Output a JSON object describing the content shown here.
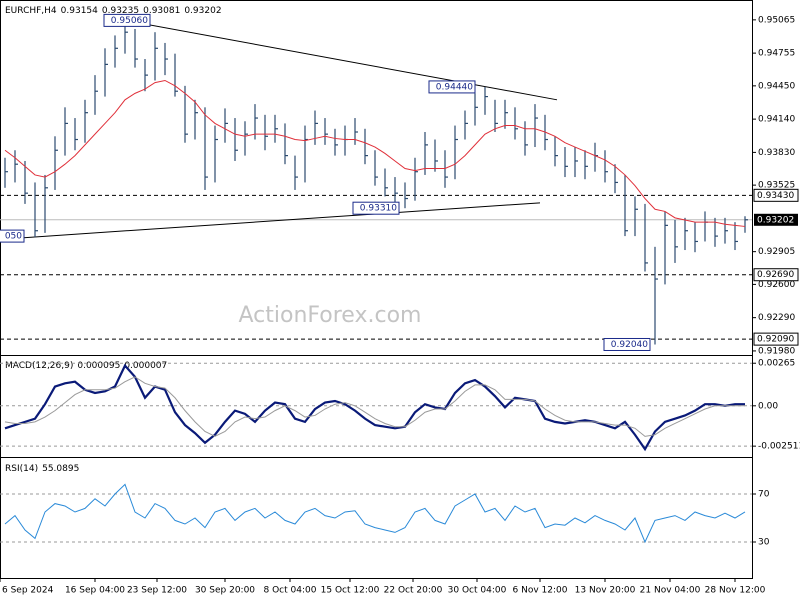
{
  "chart_data": [
    {
      "type": "ohlc",
      "title": "EURCHF,H4",
      "header_values": [
        0.93154,
        0.93235,
        0.93081,
        0.93202
      ],
      "watermark": "ActionForex.com",
      "xlim": [
        -0.5,
        74.7
      ],
      "xticks": [
        {
          "value": -0.5,
          "label": "6 Sep 2024"
        },
        {
          "value": 9,
          "label": "16 Sep 04:00"
        },
        {
          "value": 15.2,
          "label": "23 Sep 12:00"
        },
        {
          "value": 22,
          "label": "30 Sep 20:00"
        },
        {
          "value": 28.5,
          "label": "8 Oct 04:00"
        },
        {
          "value": 34.5,
          "label": "15 Oct 12:00"
        },
        {
          "value": 40.8,
          "label": "22 Oct 20:00"
        },
        {
          "value": 47.2,
          "label": "30 Oct 04:00"
        },
        {
          "value": 53.5,
          "label": "6 Nov 12:00"
        },
        {
          "value": 60,
          "label": "13 Nov 20:00"
        },
        {
          "value": 66.5,
          "label": "21 Nov 04:00"
        },
        {
          "value": 73,
          "label": "28 Nov 12:00"
        }
      ],
      "ylim": [
        0.9197,
        0.9525
      ],
      "yticks": [
        0.95065,
        0.94755,
        {
          "value": 0.9445,
          "label": "0.94450"
        },
        {
          "value": 0.9414,
          "label": "0.94140"
        },
        {
          "value": 0.9383,
          "label": "0.93830"
        },
        0.93525,
        0.92905,
        {
          "value": 0.926,
          "label": "0.92600"
        },
        {
          "value": 0.9229,
          "label": "0.92290"
        },
        {
          "value": 0.9198,
          "label": "0.91980"
        }
      ],
      "bar_color": "#2b4a6f",
      "ma_color": "#e0303a",
      "close": [
        0.9365,
        0.9372,
        0.9345,
        0.931,
        0.935,
        0.9385,
        0.941,
        0.9395,
        0.942,
        0.944,
        0.9465,
        0.948,
        0.9495,
        0.947,
        0.9455,
        0.948,
        0.947,
        0.944,
        0.94,
        0.942,
        0.936,
        0.9395,
        0.941,
        0.9385,
        0.94,
        0.9415,
        0.9398,
        0.9405,
        0.938,
        0.936,
        0.9395,
        0.941,
        0.94,
        0.939,
        0.9395,
        0.9402,
        0.938,
        0.936,
        0.935,
        0.9345,
        0.934,
        0.9365,
        0.939,
        0.9375,
        0.936,
        0.9395,
        0.941,
        0.9425,
        0.9435,
        0.941,
        0.942,
        0.9405,
        0.939,
        0.9415,
        0.9395,
        0.938,
        0.937,
        0.9375,
        0.937,
        0.938,
        0.9365,
        0.9355,
        0.931,
        0.933,
        0.928,
        0.9265,
        0.9315,
        0.9295,
        0.931,
        0.93,
        0.9318,
        0.9305,
        0.931,
        0.93,
        0.93202
      ],
      "high": [
        0.9378,
        0.9385,
        0.9375,
        0.9355,
        0.9362,
        0.9398,
        0.9425,
        0.9415,
        0.9432,
        0.9455,
        0.948,
        0.9492,
        0.9506,
        0.9498,
        0.947,
        0.9495,
        0.9485,
        0.9475,
        0.9445,
        0.9432,
        0.9425,
        0.9408,
        0.9424,
        0.9415,
        0.9412,
        0.9428,
        0.9418,
        0.9418,
        0.941,
        0.938,
        0.9408,
        0.9422,
        0.9415,
        0.9405,
        0.9408,
        0.9415,
        0.9405,
        0.9385,
        0.9368,
        0.936,
        0.9355,
        0.9378,
        0.9402,
        0.9395,
        0.9385,
        0.9408,
        0.9422,
        0.9438,
        0.9444,
        0.9432,
        0.9432,
        0.9425,
        0.9412,
        0.9428,
        0.9418,
        0.9398,
        0.9388,
        0.9388,
        0.9385,
        0.9392,
        0.9385,
        0.9372,
        0.9362,
        0.9342,
        0.9335,
        0.9295,
        0.9328,
        0.932,
        0.9322,
        0.9318,
        0.9328,
        0.9322,
        0.9322,
        0.9318,
        0.93235
      ],
      "low": [
        0.935,
        0.9355,
        0.9335,
        0.9304,
        0.9308,
        0.9348,
        0.938,
        0.9385,
        0.9392,
        0.9418,
        0.9435,
        0.9462,
        0.9475,
        0.9462,
        0.944,
        0.945,
        0.9455,
        0.9435,
        0.9392,
        0.9395,
        0.9348,
        0.9355,
        0.9392,
        0.9375,
        0.938,
        0.9395,
        0.9385,
        0.9392,
        0.9372,
        0.9348,
        0.9355,
        0.939,
        0.939,
        0.938,
        0.938,
        0.939,
        0.9372,
        0.9352,
        0.9342,
        0.9335,
        0.9331,
        0.9338,
        0.9362,
        0.9365,
        0.935,
        0.9358,
        0.9395,
        0.9408,
        0.9418,
        0.9402,
        0.9405,
        0.9395,
        0.938,
        0.9388,
        0.9385,
        0.937,
        0.936,
        0.936,
        0.9358,
        0.9365,
        0.9355,
        0.9345,
        0.9305,
        0.9305,
        0.9272,
        0.9204,
        0.926,
        0.928,
        0.9292,
        0.929,
        0.93,
        0.9295,
        0.9298,
        0.9292,
        0.93081
      ],
      "ma": [
        0.9385,
        0.9378,
        0.937,
        0.9362,
        0.936,
        0.9365,
        0.9372,
        0.938,
        0.939,
        0.94,
        0.941,
        0.942,
        0.9432,
        0.9438,
        0.9442,
        0.9448,
        0.945,
        0.9445,
        0.9438,
        0.943,
        0.9418,
        0.941,
        0.9405,
        0.94,
        0.9398,
        0.94,
        0.94,
        0.94,
        0.9398,
        0.9395,
        0.9394,
        0.9396,
        0.9398,
        0.9396,
        0.9395,
        0.9395,
        0.9392,
        0.9388,
        0.9382,
        0.9375,
        0.9368,
        0.9366,
        0.9368,
        0.9368,
        0.9368,
        0.9372,
        0.938,
        0.939,
        0.94,
        0.9405,
        0.9408,
        0.9408,
        0.9405,
        0.9405,
        0.9402,
        0.9398,
        0.9392,
        0.9388,
        0.9384,
        0.938,
        0.9376,
        0.937,
        0.9362,
        0.9352,
        0.934,
        0.933,
        0.9328,
        0.9322,
        0.932,
        0.9318,
        0.9318,
        0.9318,
        0.9316,
        0.9315,
        0.9314
      ],
      "trendlines": [
        {
          "x": [
            12,
            55.2
          ],
          "y": [
            0.9506,
            0.9432
          ]
        },
        {
          "x": [
            -0.5,
            53.5
          ],
          "y": [
            0.9302,
            0.9336
          ]
        }
      ],
      "levels": [
        {
          "value": 0.9343,
          "label": "0.93430"
        },
        {
          "value": 0.9269,
          "label": "0.92690"
        },
        {
          "value": 0.9209,
          "label": "0.92090"
        }
      ],
      "current": {
        "value": 0.93202,
        "label": "0.93202"
      },
      "annotations": [
        {
          "value": 0.9506,
          "label": "0.95060"
        },
        {
          "value": 0.9444,
          "label": "0.94440"
        },
        {
          "value": 0.9331,
          "label": "0.93310"
        },
        {
          "value": 0.9204,
          "label": "0.92040"
        },
        {
          "value": 0.9305,
          "label": "050"
        }
      ]
    },
    {
      "type": "line",
      "title": "MACD(12,26,9)",
      "header_values": [
        9.5e-05,
        7e-06
      ],
      "ylim": [
        -0.003,
        0.0031
      ],
      "yticks": [
        0.00265,
        {
          "value": 0,
          "label": "0.00"
        },
        -0.002511
      ],
      "series": [
        {
          "color": "#0a1a78",
          "width": 2.2,
          "values": [
            -0.0014,
            -0.0012,
            -0.001,
            -0.0008,
            0.0001,
            0.0012,
            0.0014,
            0.0015,
            0.001,
            0.0008,
            0.0009,
            0.0012,
            0.0025,
            0.0018,
            0.0005,
            0.0012,
            0.001,
            -0.0004,
            -0.0012,
            -0.0017,
            -0.0023,
            -0.0018,
            -0.001,
            -0.0003,
            -0.0005,
            -0.001,
            -0.0003,
            0.0002,
            0.0001,
            -0.0008,
            -0.001,
            -0.0002,
            0.0002,
            0.0003,
            0.0001,
            -0.0003,
            -0.0008,
            -0.0012,
            -0.0013,
            -0.0014,
            -0.0013,
            -0.0004,
            0.0001,
            -0.0001,
            -0.0002,
            0.0008,
            0.0014,
            0.0016,
            0.0012,
            0.0006,
            -0.0001,
            0.0005,
            0.0004,
            0.0003,
            -0.0008,
            -0.001,
            -0.0011,
            -0.001,
            -0.0009,
            -0.001,
            -0.0012,
            -0.0014,
            -0.001,
            -0.0018,
            -0.0027,
            -0.0016,
            -0.001,
            -0.0008,
            -0.0006,
            -0.0003,
            0.0001,
            0.0001,
            0,
            0.0001,
            0.0001
          ]
        },
        {
          "color": "#9a9a9a",
          "width": 1,
          "values": [
            -0.001,
            -0.0011,
            -0.0011,
            -0.001,
            -0.0007,
            -0.0003,
            0.0002,
            0.0007,
            0.001,
            0.001,
            0.001,
            0.0011,
            0.0015,
            0.0018,
            0.0014,
            0.0012,
            0.0011,
            0.0005,
            -0.0003,
            -0.001,
            -0.0016,
            -0.0019,
            -0.0016,
            -0.001,
            -0.0007,
            -0.0008,
            -0.0007,
            -0.0003,
            0,
            -0.0003,
            -0.0007,
            -0.0006,
            -0.0002,
            0.0001,
            0.0002,
            0,
            -0.0004,
            -0.0008,
            -0.0011,
            -0.0013,
            -0.0013,
            -0.0009,
            -0.0004,
            -0.0002,
            -0.0002,
            0.0003,
            0.0009,
            0.0013,
            0.0013,
            0.001,
            0.0004,
            0.0004,
            0.0004,
            0.0003,
            -0.0002,
            -0.0006,
            -0.0009,
            -0.001,
            -0.001,
            -0.001,
            -0.0011,
            -0.0012,
            -0.0012,
            -0.0014,
            -0.0019,
            -0.0018,
            -0.0014,
            -0.0011,
            -0.0008,
            -0.0005,
            -0.0002,
            0,
            0,
            0,
            0
          ]
        }
      ]
    },
    {
      "type": "line",
      "title": "RSI(14)",
      "header_values": [
        55.0895
      ],
      "ylim": [
        0,
        100
      ],
      "yticks": [
        70,
        30
      ],
      "series": [
        {
          "color": "#2a8ad8",
          "width": 1,
          "values": [
            45,
            52,
            40,
            33,
            55,
            62,
            60,
            55,
            58,
            66,
            60,
            70,
            78,
            55,
            50,
            62,
            58,
            48,
            45,
            50,
            42,
            55,
            58,
            48,
            55,
            58,
            50,
            55,
            48,
            45,
            55,
            58,
            52,
            50,
            55,
            56,
            45,
            42,
            40,
            38,
            42,
            55,
            58,
            48,
            45,
            60,
            65,
            70,
            55,
            58,
            48,
            60,
            55,
            58,
            42,
            45,
            44,
            50,
            46,
            52,
            48,
            45,
            40,
            50,
            30,
            48,
            50,
            52,
            48,
            55,
            52,
            50,
            54,
            50,
            55.0895
          ]
        }
      ]
    }
  ]
}
